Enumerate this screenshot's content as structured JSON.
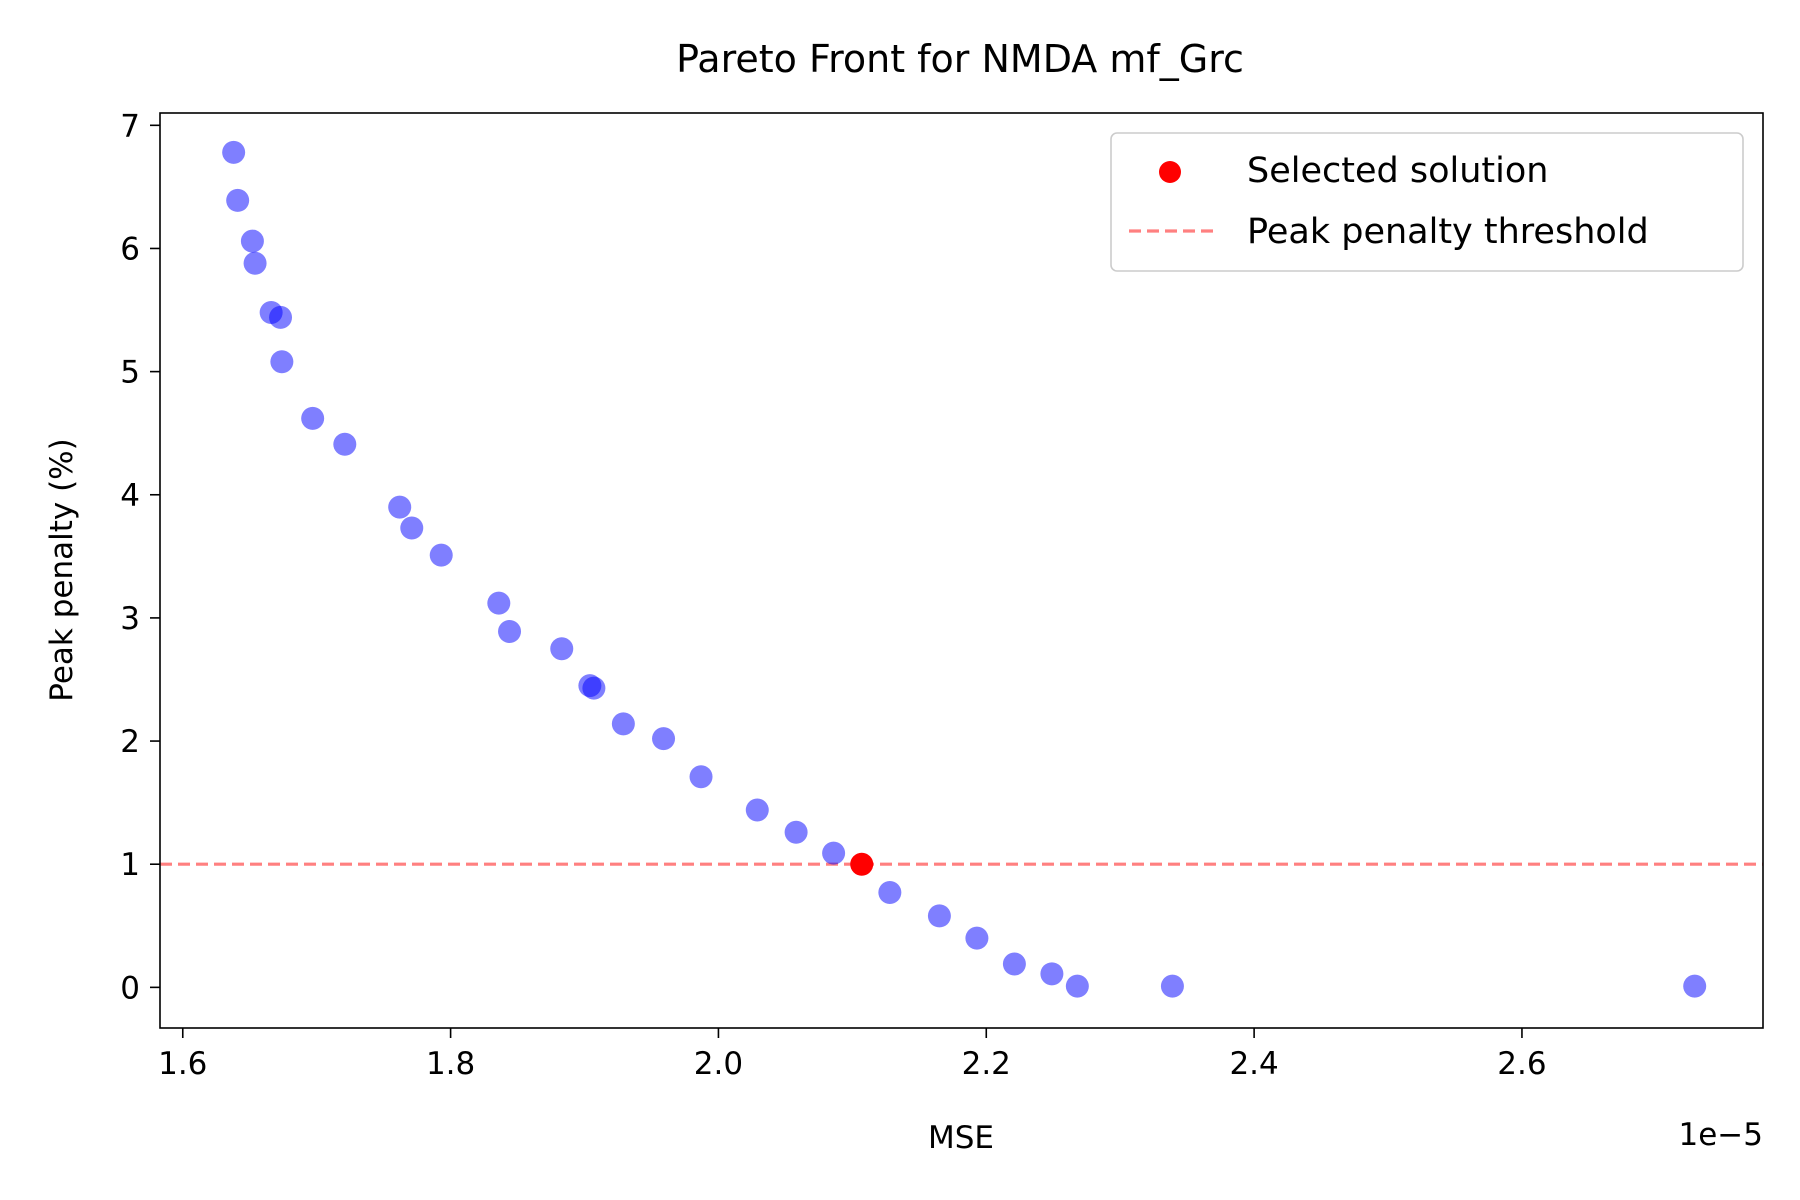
{
  "chart_data": {
    "type": "scatter",
    "title": "Pareto Front for NMDA mf_Grc",
    "xlabel": "MSE",
    "ylabel": "Peak penalty (%)",
    "x_offset_text": "1e−5",
    "x_scale_factor": 1e-05,
    "xlim": [
      1.583,
      2.78
    ],
    "ylim": [
      -0.33,
      7.1
    ],
    "xticks": [
      1.6,
      1.8,
      2.0,
      2.2,
      2.4,
      2.6
    ],
    "xtick_labels": [
      "1.6",
      "1.8",
      "2.0",
      "2.2",
      "2.4",
      "2.6"
    ],
    "yticks": [
      0,
      1,
      2,
      3,
      4,
      5,
      6,
      7
    ],
    "ytick_labels": [
      "0",
      "1",
      "2",
      "3",
      "4",
      "5",
      "6",
      "7"
    ],
    "grid": false,
    "legend_position": "top-right",
    "series": [
      {
        "kind": "scatter",
        "color": "#8080ff",
        "x": [
          1.638,
          1.641,
          1.652,
          1.654,
          1.666,
          1.673,
          1.674,
          1.697,
          1.721,
          1.762,
          1.771,
          1.793,
          1.836,
          1.844,
          1.883,
          1.904,
          1.907,
          1.929,
          1.959,
          1.987,
          2.029,
          2.058,
          2.086,
          2.128,
          2.165,
          2.193,
          2.221,
          2.249,
          2.268,
          2.339,
          2.729
        ],
        "y": [
          6.78,
          6.39,
          6.06,
          5.88,
          5.48,
          5.44,
          5.08,
          4.62,
          4.41,
          3.9,
          3.73,
          3.51,
          3.12,
          2.89,
          2.75,
          2.45,
          2.43,
          2.14,
          2.02,
          1.71,
          1.44,
          1.26,
          1.09,
          0.77,
          0.58,
          0.4,
          0.19,
          0.11,
          0.01,
          0.01,
          0.01
        ]
      },
      {
        "name": "Selected solution",
        "kind": "scatter",
        "color": "#ff0000",
        "x": [
          2.107
        ],
        "y": [
          1.0
        ]
      },
      {
        "name": "Peak penalty threshold",
        "kind": "hline",
        "color": "#ff8080",
        "style": "dashed",
        "y": 1.0
      }
    ]
  }
}
